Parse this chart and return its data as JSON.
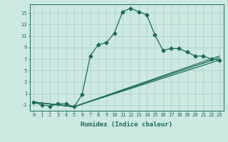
{
  "xlabel": "Humidex (Indice chaleur)",
  "background_color": "#cce8e0",
  "grid_color": "#aacccc",
  "line_color": "#1a6b5a",
  "xlim": [
    -0.5,
    23.5
  ],
  "ylim": [
    -2.0,
    16.5
  ],
  "xtick_labels": [
    "0",
    "1",
    "2",
    "3",
    "4",
    "5",
    "6",
    "7",
    "8",
    "9",
    "10",
    "11",
    "12",
    "13",
    "14",
    "15",
    "16",
    "17",
    "18",
    "19",
    "20",
    "21",
    "22",
    "23"
  ],
  "ytick_values": [
    -1,
    1,
    3,
    5,
    7,
    9,
    11,
    13,
    15
  ],
  "main_line": {
    "x": [
      0,
      1,
      2,
      3,
      4,
      5,
      6,
      7,
      8,
      9,
      10,
      11,
      12,
      13,
      14,
      15,
      16,
      17,
      18,
      19,
      20,
      21,
      22,
      23
    ],
    "y": [
      -0.5,
      -1.0,
      -1.2,
      -0.8,
      -0.8,
      -1.3,
      0.8,
      7.5,
      9.5,
      9.8,
      11.5,
      15.2,
      15.8,
      15.2,
      14.7,
      11.2,
      8.5,
      8.8,
      8.8,
      8.2,
      7.5,
      7.5,
      7.0,
      6.8
    ]
  },
  "extra_lines": [
    {
      "x": [
        0,
        5,
        23
      ],
      "y": [
        -0.5,
        -1.3,
        6.8
      ]
    },
    {
      "x": [
        0,
        5,
        23
      ],
      "y": [
        -0.5,
        -1.3,
        7.5
      ]
    },
    {
      "x": [
        0,
        5,
        23
      ],
      "y": [
        -0.5,
        -1.3,
        7.2
      ]
    }
  ],
  "marker": "D",
  "markersize": 2.5,
  "linewidth": 0.9,
  "axis_fontsize": 6,
  "tick_fontsize": 5,
  "xlabel_fontsize": 6.5
}
